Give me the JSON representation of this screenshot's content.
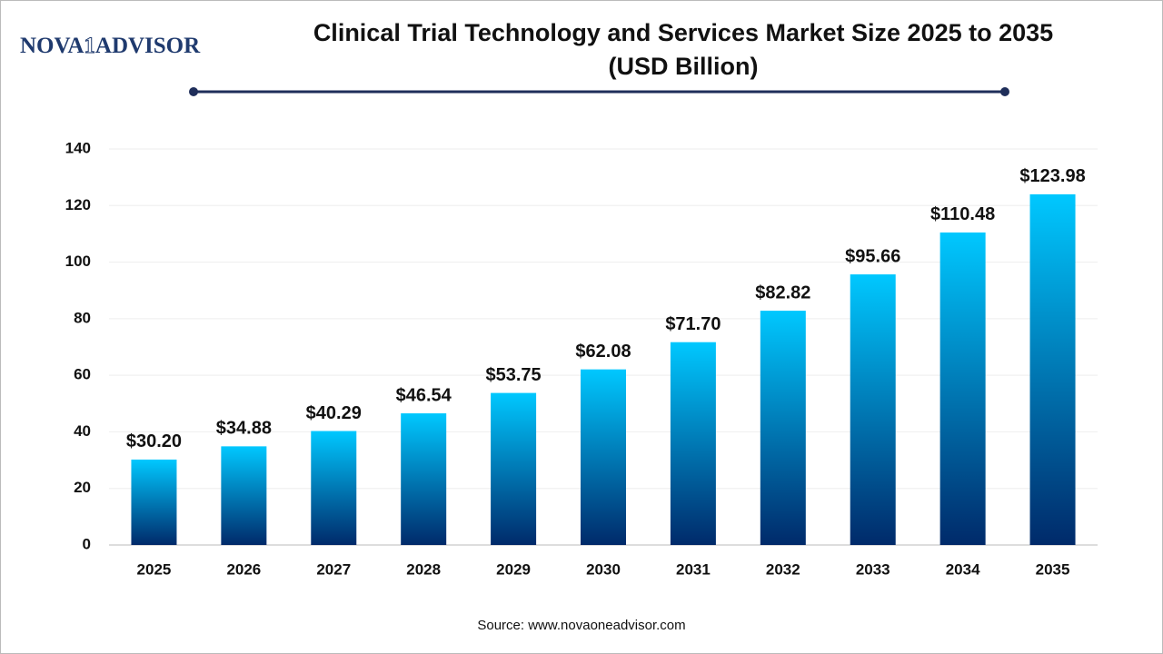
{
  "brand": [
    "NOVA",
    "1",
    "ADVISOR"
  ],
  "source": "Source: www.novaoneadvisor.com",
  "chart_data": {
    "type": "bar",
    "title": "Clinical Trial Technology and Services Market Size 2025 to 2035",
    "subtitle": "(USD Billion)",
    "categories": [
      "2025",
      "2026",
      "2027",
      "2028",
      "2029",
      "2030",
      "2031",
      "2032",
      "2033",
      "2034",
      "2035"
    ],
    "values": [
      30.2,
      34.88,
      40.29,
      46.54,
      53.75,
      62.08,
      71.7,
      82.82,
      95.66,
      110.48,
      123.98
    ],
    "value_labels": [
      "$30.20",
      "$34.88",
      "$40.29",
      "$46.54",
      "$53.75",
      "$62.08",
      "$71.70",
      "$82.82",
      "$95.66",
      "$110.48",
      "$123.98"
    ],
    "color": [
      "#00c8ff",
      "#002a6a"
    ],
    "ylim": [
      0,
      140
    ],
    "yticks": [
      0,
      20,
      40,
      60,
      80,
      100,
      120,
      140
    ],
    "grid": true
  }
}
